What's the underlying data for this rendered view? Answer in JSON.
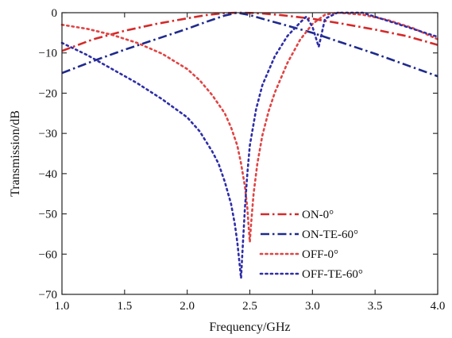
{
  "chart_data": {
    "type": "line",
    "title": "",
    "xlabel": "Frequency/GHz",
    "ylabel": "Transmission/dB",
    "xlim": [
      1.0,
      4.0
    ],
    "ylim": [
      -70,
      0
    ],
    "xticks": [
      1.0,
      1.5,
      2.0,
      2.5,
      3.0,
      3.5,
      4.0
    ],
    "xtick_labels": [
      "1.0",
      "1.5",
      "2.0",
      "2.5",
      "3.0",
      "3.5",
      "4.0"
    ],
    "yticks": [
      0,
      -10,
      -20,
      -30,
      -40,
      -50,
      -60,
      -70
    ],
    "ytick_labels": [
      "0",
      "−10",
      "−20",
      "−30",
      "−40",
      "−50",
      "−60",
      "−70"
    ],
    "grid": false,
    "legend_position": "lower-right",
    "series": [
      {
        "name": "ON-0°",
        "color": "#d42a2a",
        "dash": "dashdot",
        "x": [
          1.0,
          1.25,
          1.5,
          1.75,
          2.0,
          2.15,
          2.3,
          2.4,
          2.5,
          2.6,
          2.75,
          3.0,
          3.25,
          3.5,
          3.75,
          4.0
        ],
        "y": [
          -9.5,
          -6.6,
          -4.5,
          -2.8,
          -1.4,
          -0.6,
          -0.1,
          0.0,
          -0.05,
          -0.2,
          -0.6,
          -1.5,
          -2.8,
          -4.2,
          -5.8,
          -8.0
        ]
      },
      {
        "name": "ON-TE-60°",
        "color": "#1f2a8c",
        "dash": "dashdot",
        "x": [
          1.0,
          1.25,
          1.5,
          1.75,
          2.0,
          2.15,
          2.3,
          2.4,
          2.5,
          2.6,
          2.75,
          3.0,
          3.25,
          3.5,
          3.75,
          4.0
        ],
        "y": [
          -15.0,
          -12.0,
          -9.2,
          -6.6,
          -4.0,
          -2.3,
          -0.7,
          0.0,
          -0.6,
          -1.5,
          -2.8,
          -5.0,
          -7.6,
          -10.2,
          -13.0,
          -15.8
        ]
      },
      {
        "name": "OFF-0°",
        "color": "#e04444",
        "dash": "dot",
        "x": [
          1.0,
          1.2,
          1.4,
          1.6,
          1.8,
          2.0,
          2.1,
          2.2,
          2.3,
          2.35,
          2.4,
          2.43,
          2.46,
          2.48,
          2.49,
          2.5,
          2.51,
          2.53,
          2.56,
          2.6,
          2.65,
          2.7,
          2.8,
          2.9,
          3.0,
          3.1,
          3.2,
          3.4,
          3.6,
          3.8,
          4.0
        ],
        "y": [
          -3.0,
          -4.0,
          -5.5,
          -7.5,
          -10.2,
          -14.0,
          -16.8,
          -20.5,
          -25.0,
          -28.5,
          -33.0,
          -37.5,
          -43.0,
          -48.5,
          -53.0,
          -57.0,
          -52.5,
          -45.0,
          -37.5,
          -30.5,
          -24.5,
          -19.8,
          -12.5,
          -6.8,
          -2.8,
          -0.5,
          0.0,
          -0.5,
          -1.8,
          -3.8,
          -6.6
        ]
      },
      {
        "name": "OFF-TE-60°",
        "color": "#2e2ea8",
        "dash": "dot",
        "x": [
          1.0,
          1.2,
          1.4,
          1.6,
          1.8,
          2.0,
          2.1,
          2.2,
          2.25,
          2.3,
          2.35,
          2.38,
          2.4,
          2.42,
          2.43,
          2.44,
          2.46,
          2.48,
          2.5,
          2.55,
          2.6,
          2.7,
          2.8,
          2.9,
          2.95,
          3.0,
          3.05,
          3.1,
          3.2,
          3.4,
          3.6,
          3.8,
          4.0
        ],
        "y": [
          -7.5,
          -10.5,
          -14.0,
          -17.5,
          -21.5,
          -26.0,
          -29.5,
          -34.5,
          -37.5,
          -42.0,
          -47.5,
          -52.5,
          -57.0,
          -63.0,
          -66.0,
          -60.0,
          -49.0,
          -40.0,
          -33.0,
          -24.0,
          -18.0,
          -10.8,
          -5.8,
          -2.5,
          -1.0,
          -3.5,
          -8.5,
          -1.5,
          0.0,
          0.0,
          -2.0,
          -4.0,
          -6.0
        ]
      }
    ]
  }
}
